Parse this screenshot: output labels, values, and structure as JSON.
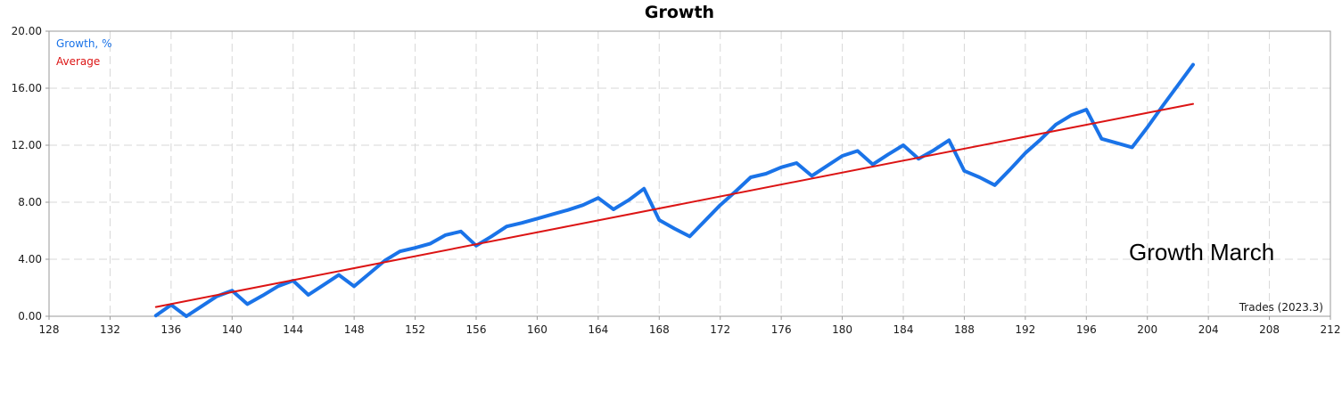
{
  "chart_data": {
    "type": "line",
    "title": "Growth",
    "xlabel": "Trades (2023.3)",
    "annotation": "Growth March",
    "grid": true,
    "legend_position": "top-left",
    "xlim": [
      128,
      212
    ],
    "ylim": [
      0,
      20
    ],
    "x_ticks": [
      128,
      132,
      136,
      140,
      144,
      148,
      152,
      156,
      160,
      164,
      168,
      172,
      176,
      180,
      184,
      188,
      192,
      196,
      200,
      204,
      208,
      212
    ],
    "y_ticks": [
      "0.00",
      "4.00",
      "8.00",
      "12.00",
      "16.00",
      "20.00"
    ],
    "series": [
      {
        "name": "Growth, %",
        "color": "#1a73e8",
        "x": [
          135,
          136,
          137,
          138,
          139,
          140,
          141,
          142,
          143,
          144,
          145,
          146,
          147,
          148,
          149,
          150,
          151,
          152,
          153,
          154,
          155,
          156,
          157,
          158,
          159,
          160,
          161,
          162,
          163,
          164,
          165,
          166,
          167,
          168,
          169,
          170,
          171,
          172,
          173,
          174,
          175,
          176,
          177,
          178,
          179,
          180,
          181,
          182,
          183,
          184,
          185,
          186,
          187,
          188,
          189,
          190,
          191,
          192,
          193,
          194,
          195,
          196,
          197,
          198,
          199,
          200,
          201,
          202,
          203
        ],
        "values": [
          0.05,
          0.8,
          0.0,
          0.7,
          1.4,
          1.8,
          0.85,
          1.45,
          2.1,
          2.5,
          1.5,
          2.2,
          2.9,
          2.1,
          3.0,
          3.9,
          4.55,
          4.8,
          5.1,
          5.7,
          5.95,
          4.95,
          5.6,
          6.3,
          6.55,
          6.85,
          7.15,
          7.45,
          7.8,
          8.3,
          7.5,
          8.15,
          8.95,
          6.75,
          6.15,
          5.6,
          6.7,
          7.8,
          8.75,
          9.75,
          10.0,
          10.45,
          10.75,
          9.85,
          10.55,
          11.25,
          11.6,
          10.65,
          11.35,
          12.0,
          11.05,
          11.65,
          12.35,
          10.2,
          9.75,
          9.2,
          10.3,
          11.45,
          12.4,
          13.45,
          14.1,
          14.5,
          12.45,
          12.15,
          11.85,
          13.25,
          14.75,
          16.2,
          17.65
        ]
      },
      {
        "name": "Average",
        "color": "#dc1414",
        "x": [
          135,
          203
        ],
        "values": [
          0.65,
          14.9
        ]
      }
    ]
  }
}
